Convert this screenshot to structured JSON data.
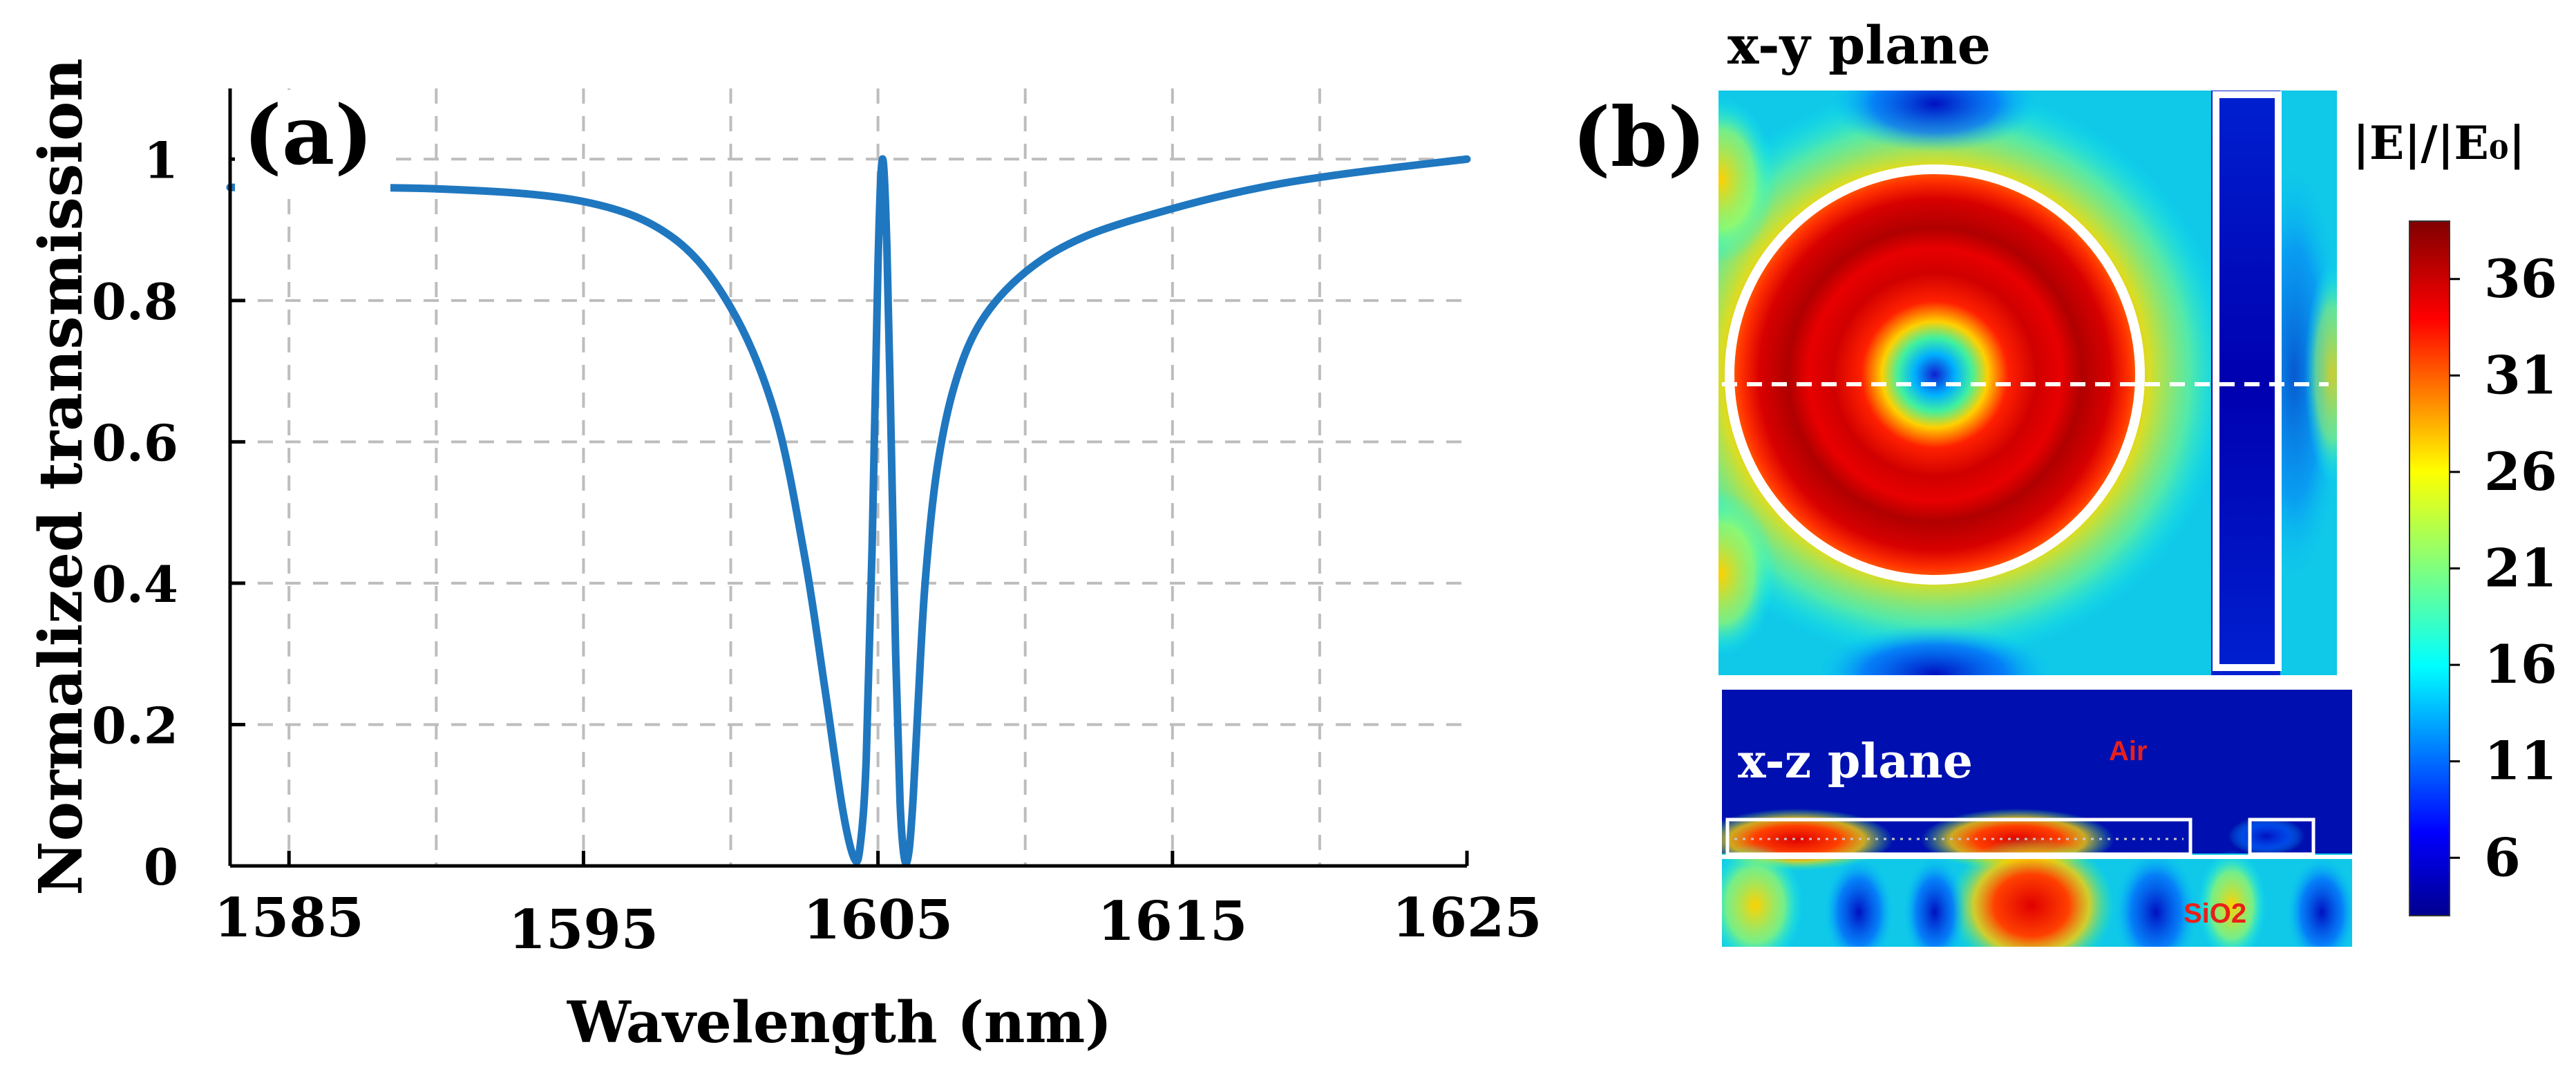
{
  "chart_data": [
    {
      "type": "line",
      "panel_label": "(a)",
      "title": "",
      "xlabel": "Wavelength (nm)",
      "ylabel": "Normalized transmission",
      "xlim": [
        1583,
        1625
      ],
      "ylim": [
        0,
        1.1
      ],
      "grid": true,
      "xticks": [
        1585,
        1595,
        1605,
        1615,
        1625
      ],
      "xtick_labels": [
        "1585",
        "1595",
        "1605",
        "1615",
        "1625"
      ],
      "yticks": [
        0,
        0.2,
        0.4,
        0.6,
        0.8,
        1
      ],
      "ytick_labels": [
        "0",
        "0.2",
        "0.4",
        "0.6",
        "0.8",
        "1"
      ],
      "series": [
        {
          "name": "transmission",
          "color": "#1f77c0",
          "x": [
            1583,
            1590,
            1595,
            1598,
            1600,
            1601.5,
            1602.5,
            1603.2,
            1603.8,
            1604.2,
            1604.4,
            1604.6,
            1604.8,
            1605.0,
            1605.15,
            1605.3,
            1605.45,
            1605.6,
            1605.75,
            1605.9,
            1606.05,
            1606.2,
            1606.35,
            1606.6,
            1607.0,
            1607.6,
            1608.5,
            1610,
            1612,
            1615,
            1618,
            1621,
            1625
          ],
          "y": [
            0.96,
            0.958,
            0.94,
            0.89,
            0.79,
            0.64,
            0.44,
            0.25,
            0.08,
            0.01,
            0.03,
            0.15,
            0.45,
            0.85,
            1.0,
            0.88,
            0.6,
            0.3,
            0.09,
            0.01,
            0.02,
            0.1,
            0.22,
            0.4,
            0.56,
            0.68,
            0.77,
            0.84,
            0.89,
            0.93,
            0.96,
            0.98,
            1.0
          ]
        }
      ]
    },
    {
      "type": "heatmap",
      "panel_label": "(b)",
      "subpanel_titles": [
        "x-y plane",
        "x-z plane"
      ],
      "region_labels": [
        "Air",
        "SiO2"
      ],
      "colorbar_title": "|E|/|E₀|",
      "colorbar_ticks": [
        "36",
        "31",
        "26",
        "21",
        "16",
        "11",
        "6"
      ],
      "colorbar_range": [
        3,
        39
      ]
    }
  ],
  "colors": {
    "line": "#1f77c0",
    "grid": "#bdbdbd",
    "axes": "#000000",
    "air_label": "#e8201a",
    "sio2_label": "#e8201a"
  }
}
